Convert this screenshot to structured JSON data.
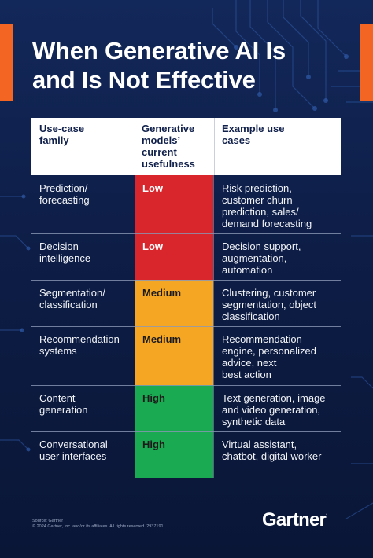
{
  "title": {
    "line1": "When Generative AI Is",
    "line2": "and Is Not Effective"
  },
  "colors": {
    "background": "#0f1f4a",
    "accent": "#f26522",
    "low": "#d9262d",
    "medium": "#f5a623",
    "high": "#1aab52"
  },
  "table": {
    "headers": {
      "col1": [
        "Use-case",
        "family"
      ],
      "col2": [
        "Generative",
        "models’",
        "current",
        "usefulness"
      ],
      "col3": [
        "Example use",
        "cases"
      ]
    },
    "rows": [
      {
        "family": [
          "Prediction/",
          "forecasting"
        ],
        "usefulness": "Low",
        "examples": [
          "Risk prediction,",
          "customer churn",
          "prediction, sales/",
          "demand forecasting"
        ]
      },
      {
        "family": [
          "Decision",
          "intelligence"
        ],
        "usefulness": "Low",
        "examples": [
          "Decision support,",
          "augmentation,",
          "automation"
        ]
      },
      {
        "family": [
          "Segmentation/",
          "classification"
        ],
        "usefulness": "Medium",
        "examples": [
          "Clustering, customer",
          "segmentation, object",
          "classification"
        ]
      },
      {
        "family": [
          "Recommendation",
          "systems"
        ],
        "usefulness": "Medium",
        "examples": [
          "Recommendation",
          "engine, personalized",
          "advice, next",
          "best action"
        ]
      },
      {
        "family": [
          "Content",
          "generation"
        ],
        "usefulness": "High",
        "examples": [
          "Text generation, image",
          "and video generation,",
          "synthetic data"
        ]
      },
      {
        "family": [
          "Conversational",
          "user interfaces"
        ],
        "usefulness": "High",
        "examples": [
          "Virtual assistant,",
          "chatbot, digital worker"
        ]
      }
    ]
  },
  "footer": {
    "source": "Source: Gartner",
    "copyright": "© 2024 Gartner, Inc. and/or its affiliates. All rights reserved. 2937191",
    "logo": "Gartner",
    "logo_dot": "."
  }
}
